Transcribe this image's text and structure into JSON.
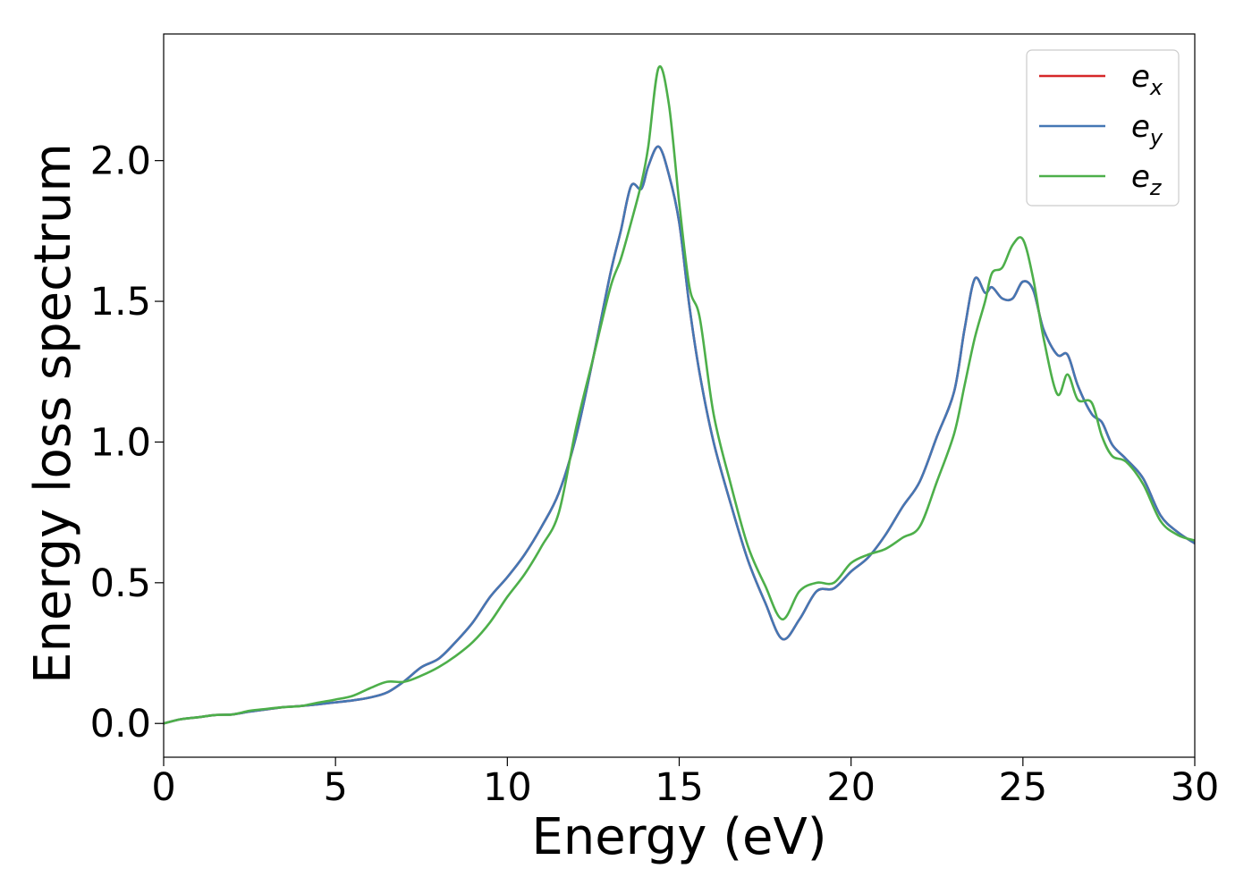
{
  "chart_data": {
    "type": "line",
    "title": "",
    "xlabel": "Energy (eV)",
    "ylabel": "Energy loss spectrum",
    "xlim": [
      0,
      30
    ],
    "ylim": [
      -0.12,
      2.45
    ],
    "xticks": [
      0,
      5,
      10,
      15,
      20,
      25,
      30
    ],
    "xtick_labels": [
      "0",
      "5",
      "10",
      "15",
      "20",
      "25",
      "30"
    ],
    "yticks": [
      0.0,
      0.5,
      1.0,
      1.5,
      2.0
    ],
    "ytick_labels": [
      "0.0",
      "0.5",
      "1.0",
      "1.5",
      "2.0"
    ],
    "grid": false,
    "legend_position": "top-right",
    "series": [
      {
        "name": "e_x",
        "legend_base": "e",
        "legend_sub": "x",
        "color": "#d62728",
        "x": [
          0,
          0.5,
          1,
          1.5,
          2,
          2.5,
          3,
          3.5,
          4,
          4.5,
          5,
          5.5,
          6,
          6.5,
          7,
          7.5,
          8,
          8.5,
          9,
          9.5,
          10,
          10.5,
          11,
          11.5,
          12,
          12.5,
          13,
          13.3,
          13.6,
          13.9,
          14.1,
          14.4,
          14.7,
          15,
          15.3,
          15.6,
          16,
          16.5,
          17,
          17.5,
          18,
          18.5,
          19,
          19.5,
          20,
          20.5,
          21,
          21.5,
          22,
          22.5,
          23,
          23.3,
          23.6,
          23.9,
          24.1,
          24.4,
          24.7,
          25,
          25.3,
          25.6,
          26,
          26.3,
          26.6,
          27,
          27.3,
          27.6,
          28,
          28.5,
          29,
          29.5,
          30
        ],
        "y": [
          0.0,
          0.015,
          0.022,
          0.03,
          0.032,
          0.042,
          0.05,
          0.058,
          0.062,
          0.068,
          0.075,
          0.082,
          0.092,
          0.11,
          0.15,
          0.2,
          0.23,
          0.29,
          0.36,
          0.45,
          0.52,
          0.6,
          0.7,
          0.82,
          1.02,
          1.3,
          1.6,
          1.75,
          1.91,
          1.9,
          1.98,
          2.05,
          1.95,
          1.78,
          1.48,
          1.24,
          1.0,
          0.78,
          0.58,
          0.43,
          0.3,
          0.37,
          0.47,
          0.48,
          0.54,
          0.59,
          0.67,
          0.77,
          0.86,
          1.02,
          1.18,
          1.4,
          1.58,
          1.53,
          1.55,
          1.51,
          1.51,
          1.57,
          1.54,
          1.4,
          1.31,
          1.31,
          1.2,
          1.1,
          1.07,
          0.99,
          0.94,
          0.87,
          0.74,
          0.68,
          0.64
        ]
      },
      {
        "name": "e_y",
        "legend_base": "e",
        "legend_sub": "y",
        "color": "#4477b4",
        "x": [
          0,
          0.5,
          1,
          1.5,
          2,
          2.5,
          3,
          3.5,
          4,
          4.5,
          5,
          5.5,
          6,
          6.5,
          7,
          7.5,
          8,
          8.5,
          9,
          9.5,
          10,
          10.5,
          11,
          11.5,
          12,
          12.5,
          13,
          13.3,
          13.6,
          13.9,
          14.1,
          14.4,
          14.7,
          15,
          15.3,
          15.6,
          16,
          16.5,
          17,
          17.5,
          18,
          18.5,
          19,
          19.5,
          20,
          20.5,
          21,
          21.5,
          22,
          22.5,
          23,
          23.3,
          23.6,
          23.9,
          24.1,
          24.4,
          24.7,
          25,
          25.3,
          25.6,
          26,
          26.3,
          26.6,
          27,
          27.3,
          27.6,
          28,
          28.5,
          29,
          29.5,
          30
        ],
        "y": [
          0.0,
          0.015,
          0.022,
          0.03,
          0.032,
          0.042,
          0.05,
          0.058,
          0.062,
          0.068,
          0.075,
          0.082,
          0.092,
          0.11,
          0.15,
          0.2,
          0.23,
          0.29,
          0.36,
          0.45,
          0.52,
          0.6,
          0.7,
          0.82,
          1.02,
          1.3,
          1.6,
          1.75,
          1.91,
          1.9,
          1.98,
          2.05,
          1.95,
          1.78,
          1.48,
          1.24,
          1.0,
          0.78,
          0.58,
          0.43,
          0.3,
          0.37,
          0.47,
          0.48,
          0.54,
          0.59,
          0.67,
          0.77,
          0.86,
          1.02,
          1.18,
          1.4,
          1.58,
          1.53,
          1.55,
          1.51,
          1.51,
          1.57,
          1.54,
          1.4,
          1.31,
          1.31,
          1.2,
          1.1,
          1.07,
          0.99,
          0.94,
          0.87,
          0.74,
          0.68,
          0.64
        ]
      },
      {
        "name": "e_z",
        "legend_base": "e",
        "legend_sub": "z",
        "color": "#4daf4a",
        "x": [
          0,
          0.5,
          1,
          1.5,
          2,
          2.5,
          3,
          3.5,
          4,
          4.5,
          5,
          5.5,
          6,
          6.5,
          7,
          7.5,
          8,
          8.5,
          9,
          9.5,
          10,
          10.5,
          11,
          11.5,
          12,
          12.5,
          13,
          13.3,
          13.6,
          13.9,
          14.1,
          14.4,
          14.7,
          15,
          15.3,
          15.6,
          16,
          16.5,
          17,
          17.5,
          18,
          18.5,
          19,
          19.5,
          20,
          20.5,
          21,
          21.5,
          22,
          22.5,
          23,
          23.3,
          23.6,
          23.9,
          24.1,
          24.4,
          24.7,
          25,
          25.3,
          25.6,
          26,
          26.3,
          26.6,
          27,
          27.3,
          27.6,
          28,
          28.5,
          29,
          29.5,
          30
        ],
        "y": [
          0.0,
          0.015,
          0.022,
          0.03,
          0.032,
          0.045,
          0.052,
          0.058,
          0.062,
          0.074,
          0.085,
          0.098,
          0.125,
          0.148,
          0.148,
          0.17,
          0.2,
          0.24,
          0.29,
          0.36,
          0.45,
          0.53,
          0.63,
          0.75,
          1.05,
          1.3,
          1.55,
          1.65,
          1.78,
          1.92,
          2.05,
          2.33,
          2.2,
          1.85,
          1.55,
          1.44,
          1.1,
          0.85,
          0.63,
          0.49,
          0.37,
          0.47,
          0.5,
          0.5,
          0.57,
          0.6,
          0.62,
          0.66,
          0.7,
          0.86,
          1.03,
          1.2,
          1.37,
          1.5,
          1.6,
          1.62,
          1.7,
          1.72,
          1.58,
          1.37,
          1.17,
          1.24,
          1.15,
          1.14,
          1.02,
          0.95,
          0.93,
          0.85,
          0.72,
          0.67,
          0.65
        ]
      }
    ]
  }
}
